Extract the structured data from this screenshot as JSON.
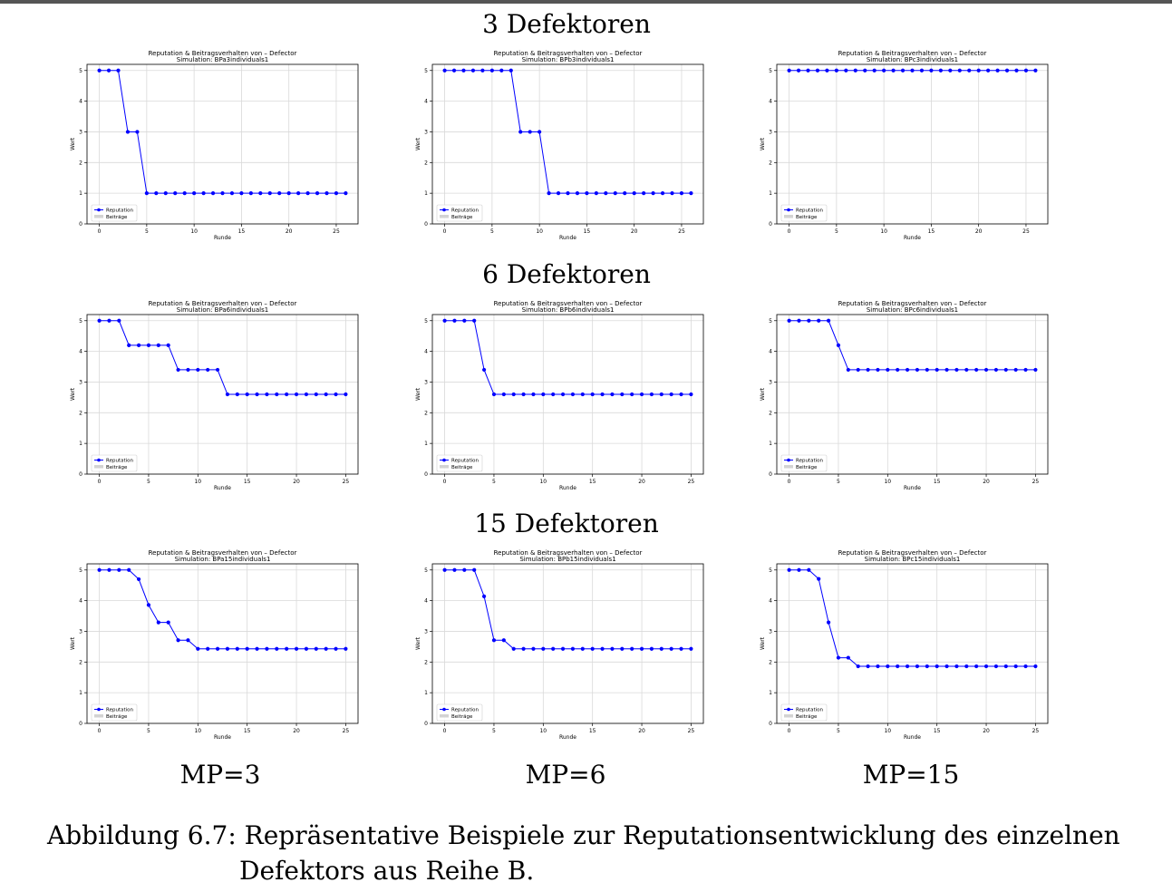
{
  "rows": [
    {
      "title": "3 Defektoren"
    },
    {
      "title": "6 Defektoren"
    },
    {
      "title": "15 Defektoren"
    }
  ],
  "columns": [
    {
      "label": "MP=3"
    },
    {
      "label": "MP=6"
    },
    {
      "label": "MP=15"
    }
  ],
  "caption": {
    "line1": "Abbildung 6.7: Repräsentative Beispiele zur Reputationsentwicklung des einzelnen",
    "line2": "Defektors aus Reihe B."
  },
  "chart_data": [
    {
      "type": "line",
      "title": "Reputation & Beitragsverhalten von – Defector",
      "subtitle": "Simulation: BPa3individuals1",
      "xlabel": "Runde",
      "ylabel": "Wert",
      "xlim": [
        -1.3,
        27.3
      ],
      "ylim": [
        0,
        5.2
      ],
      "xticks": [
        0,
        5,
        10,
        15,
        20,
        25
      ],
      "yticks": [
        0,
        1,
        2,
        3,
        4,
        5
      ],
      "grid": true,
      "legend": "bottom-left",
      "series": [
        {
          "name": "Reputation",
          "color": "#0000ff",
          "marker": "circle",
          "x": [
            0,
            1,
            2,
            3,
            4,
            5,
            6,
            7,
            8,
            9,
            10,
            11,
            12,
            13,
            14,
            15,
            16,
            17,
            18,
            19,
            20,
            21,
            22,
            23,
            24,
            25,
            26
          ],
          "y": [
            5,
            5,
            5,
            3,
            3,
            1,
            1,
            1,
            1,
            1,
            1,
            1,
            1,
            1,
            1,
            1,
            1,
            1,
            1,
            1,
            1,
            1,
            1,
            1,
            1,
            1,
            1
          ]
        },
        {
          "name": "Beiträge",
          "color": "#d3d3d3",
          "type": "bar",
          "x": [],
          "y": []
        }
      ]
    },
    {
      "type": "line",
      "title": "Reputation & Beitragsverhalten von – Defector",
      "subtitle": "Simulation: BPb3individuals1",
      "xlabel": "Runde",
      "ylabel": "Wert",
      "xlim": [
        -1.3,
        27.3
      ],
      "ylim": [
        0,
        5.2
      ],
      "xticks": [
        0,
        5,
        10,
        15,
        20,
        25
      ],
      "yticks": [
        0,
        1,
        2,
        3,
        4,
        5
      ],
      "grid": true,
      "legend": "bottom-left",
      "series": [
        {
          "name": "Reputation",
          "color": "#0000ff",
          "marker": "circle",
          "x": [
            0,
            1,
            2,
            3,
            4,
            5,
            6,
            7,
            8,
            9,
            10,
            11,
            12,
            13,
            14,
            15,
            16,
            17,
            18,
            19,
            20,
            21,
            22,
            23,
            24,
            25,
            26
          ],
          "y": [
            5,
            5,
            5,
            5,
            5,
            5,
            5,
            5,
            3,
            3,
            3,
            1,
            1,
            1,
            1,
            1,
            1,
            1,
            1,
            1,
            1,
            1,
            1,
            1,
            1,
            1,
            1
          ]
        },
        {
          "name": "Beiträge",
          "color": "#d3d3d3",
          "type": "bar",
          "x": [],
          "y": []
        }
      ]
    },
    {
      "type": "line",
      "title": "Reputation & Beitragsverhalten von – Defector",
      "subtitle": "Simulation: BPc3individuals1",
      "xlabel": "Runde",
      "ylabel": "Wert",
      "xlim": [
        -1.3,
        27.3
      ],
      "ylim": [
        0,
        5.2
      ],
      "xticks": [
        0,
        5,
        10,
        15,
        20,
        25
      ],
      "yticks": [
        0,
        1,
        2,
        3,
        4,
        5
      ],
      "grid": true,
      "legend": "bottom-left",
      "series": [
        {
          "name": "Reputation",
          "color": "#0000ff",
          "marker": "circle",
          "x": [
            0,
            1,
            2,
            3,
            4,
            5,
            6,
            7,
            8,
            9,
            10,
            11,
            12,
            13,
            14,
            15,
            16,
            17,
            18,
            19,
            20,
            21,
            22,
            23,
            24,
            25,
            26
          ],
          "y": [
            5,
            5,
            5,
            5,
            5,
            5,
            5,
            5,
            5,
            5,
            5,
            5,
            5,
            5,
            5,
            5,
            5,
            5,
            5,
            5,
            5,
            5,
            5,
            5,
            5,
            5,
            5
          ]
        },
        {
          "name": "Beiträge",
          "color": "#d3d3d3",
          "type": "bar",
          "x": [],
          "y": []
        }
      ]
    },
    {
      "type": "line",
      "title": "Reputation & Beitragsverhalten von – Defector",
      "subtitle": "Simulation: BPa6individuals1",
      "xlabel": "Runde",
      "ylabel": "Wert",
      "xlim": [
        -1.25,
        26.25
      ],
      "ylim": [
        0,
        5.2
      ],
      "xticks": [
        0,
        5,
        10,
        15,
        20,
        25
      ],
      "yticks": [
        0,
        1,
        2,
        3,
        4,
        5
      ],
      "grid": true,
      "legend": "bottom-left",
      "series": [
        {
          "name": "Reputation",
          "color": "#0000ff",
          "marker": "circle",
          "x": [
            0,
            1,
            2,
            3,
            4,
            5,
            6,
            7,
            8,
            9,
            10,
            11,
            12,
            13,
            14,
            15,
            16,
            17,
            18,
            19,
            20,
            21,
            22,
            23,
            24,
            25
          ],
          "y": [
            5,
            5,
            5,
            4.2,
            4.2,
            4.2,
            4.2,
            4.2,
            3.4,
            3.4,
            3.4,
            3.4,
            3.4,
            2.6,
            2.6,
            2.6,
            2.6,
            2.6,
            2.6,
            2.6,
            2.6,
            2.6,
            2.6,
            2.6,
            2.6,
            2.6
          ]
        },
        {
          "name": "Beiträge",
          "color": "#d3d3d3",
          "type": "bar",
          "x": [],
          "y": []
        }
      ]
    },
    {
      "type": "line",
      "title": "Reputation & Beitragsverhalten von – Defector",
      "subtitle": "Simulation: BPb6individuals1",
      "xlabel": "Runde",
      "ylabel": "Wert",
      "xlim": [
        -1.25,
        26.25
      ],
      "ylim": [
        0,
        5.2
      ],
      "xticks": [
        0,
        5,
        10,
        15,
        20,
        25
      ],
      "yticks": [
        0,
        1,
        2,
        3,
        4,
        5
      ],
      "grid": true,
      "legend": "bottom-left",
      "series": [
        {
          "name": "Reputation",
          "color": "#0000ff",
          "marker": "circle",
          "x": [
            0,
            1,
            2,
            3,
            4,
            5,
            6,
            7,
            8,
            9,
            10,
            11,
            12,
            13,
            14,
            15,
            16,
            17,
            18,
            19,
            20,
            21,
            22,
            23,
            24,
            25
          ],
          "y": [
            5,
            5,
            5,
            5,
            3.4,
            2.6,
            2.6,
            2.6,
            2.6,
            2.6,
            2.6,
            2.6,
            2.6,
            2.6,
            2.6,
            2.6,
            2.6,
            2.6,
            2.6,
            2.6,
            2.6,
            2.6,
            2.6,
            2.6,
            2.6,
            2.6
          ]
        },
        {
          "name": "Beiträge",
          "color": "#d3d3d3",
          "type": "bar",
          "x": [],
          "y": []
        }
      ]
    },
    {
      "type": "line",
      "title": "Reputation & Beitragsverhalten von – Defector",
      "subtitle": "Simulation: BPc6individuals1",
      "xlabel": "Runde",
      "ylabel": "Wert",
      "xlim": [
        -1.25,
        26.25
      ],
      "ylim": [
        0,
        5.2
      ],
      "xticks": [
        0,
        5,
        10,
        15,
        20,
        25
      ],
      "yticks": [
        0,
        1,
        2,
        3,
        4,
        5
      ],
      "grid": true,
      "legend": "bottom-left",
      "series": [
        {
          "name": "Reputation",
          "color": "#0000ff",
          "marker": "circle",
          "x": [
            0,
            1,
            2,
            3,
            4,
            5,
            6,
            7,
            8,
            9,
            10,
            11,
            12,
            13,
            14,
            15,
            16,
            17,
            18,
            19,
            20,
            21,
            22,
            23,
            24,
            25
          ],
          "y": [
            5,
            5,
            5,
            5,
            5,
            4.2,
            3.4,
            3.4,
            3.4,
            3.4,
            3.4,
            3.4,
            3.4,
            3.4,
            3.4,
            3.4,
            3.4,
            3.4,
            3.4,
            3.4,
            3.4,
            3.4,
            3.4,
            3.4,
            3.4,
            3.4
          ]
        },
        {
          "name": "Beiträge",
          "color": "#d3d3d3",
          "type": "bar",
          "x": [],
          "y": []
        }
      ]
    },
    {
      "type": "line",
      "title": "Reputation & Beitragsverhalten von – Defector",
      "subtitle": "Simulation: BPa15individuals1",
      "xlabel": "Runde",
      "ylabel": "Wert",
      "xlim": [
        -1.25,
        26.25
      ],
      "ylim": [
        0,
        5.2
      ],
      "xticks": [
        0,
        5,
        10,
        15,
        20,
        25
      ],
      "yticks": [
        0,
        1,
        2,
        3,
        4,
        5
      ],
      "grid": true,
      "legend": "bottom-left",
      "series": [
        {
          "name": "Reputation",
          "color": "#0000ff",
          "marker": "circle",
          "x": [
            0,
            1,
            2,
            3,
            4,
            5,
            6,
            7,
            8,
            9,
            10,
            11,
            12,
            13,
            14,
            15,
            16,
            17,
            18,
            19,
            20,
            21,
            22,
            23,
            24,
            25
          ],
          "y": [
            5,
            5,
            5,
            5,
            4.7,
            3.86,
            3.29,
            3.29,
            2.71,
            2.71,
            2.43,
            2.43,
            2.43,
            2.43,
            2.43,
            2.43,
            2.43,
            2.43,
            2.43,
            2.43,
            2.43,
            2.43,
            2.43,
            2.43,
            2.43,
            2.43
          ]
        },
        {
          "name": "Beiträge",
          "color": "#d3d3d3",
          "type": "bar",
          "x": [],
          "y": []
        }
      ]
    },
    {
      "type": "line",
      "title": "Reputation & Beitragsverhalten von – Defector",
      "subtitle": "Simulation: BPb15individuals1",
      "xlabel": "Runde",
      "ylabel": "Wert",
      "xlim": [
        -1.25,
        26.25
      ],
      "ylim": [
        0,
        5.2
      ],
      "xticks": [
        0,
        5,
        10,
        15,
        20,
        25
      ],
      "yticks": [
        0,
        1,
        2,
        3,
        4,
        5
      ],
      "grid": true,
      "legend": "bottom-left",
      "series": [
        {
          "name": "Reputation",
          "color": "#0000ff",
          "marker": "circle",
          "x": [
            0,
            1,
            2,
            3,
            4,
            5,
            6,
            7,
            8,
            9,
            10,
            11,
            12,
            13,
            14,
            15,
            16,
            17,
            18,
            19,
            20,
            21,
            22,
            23,
            24,
            25
          ],
          "y": [
            5,
            5,
            5,
            5,
            4.14,
            2.71,
            2.71,
            2.43,
            2.43,
            2.43,
            2.43,
            2.43,
            2.43,
            2.43,
            2.43,
            2.43,
            2.43,
            2.43,
            2.43,
            2.43,
            2.43,
            2.43,
            2.43,
            2.43,
            2.43,
            2.43
          ]
        },
        {
          "name": "Beiträge",
          "color": "#d3d3d3",
          "type": "bar",
          "x": [],
          "y": []
        }
      ]
    },
    {
      "type": "line",
      "title": "Reputation & Beitragsverhalten von – Defector",
      "subtitle": "Simulation: BPc15individuals1",
      "xlabel": "Runde",
      "ylabel": "Wert",
      "xlim": [
        -1.25,
        26.25
      ],
      "ylim": [
        0,
        5.2
      ],
      "xticks": [
        0,
        5,
        10,
        15,
        20,
        25
      ],
      "yticks": [
        0,
        1,
        2,
        3,
        4,
        5
      ],
      "grid": true,
      "legend": "bottom-left",
      "series": [
        {
          "name": "Reputation",
          "color": "#0000ff",
          "marker": "circle",
          "x": [
            0,
            1,
            2,
            3,
            4,
            5,
            6,
            7,
            8,
            9,
            10,
            11,
            12,
            13,
            14,
            15,
            16,
            17,
            18,
            19,
            20,
            21,
            22,
            23,
            24,
            25
          ],
          "y": [
            5,
            5,
            5,
            4.71,
            3.29,
            2.14,
            2.14,
            1.86,
            1.86,
            1.86,
            1.86,
            1.86,
            1.86,
            1.86,
            1.86,
            1.86,
            1.86,
            1.86,
            1.86,
            1.86,
            1.86,
            1.86,
            1.86,
            1.86,
            1.86,
            1.86
          ]
        },
        {
          "name": "Beiträge",
          "color": "#d3d3d3",
          "type": "bar",
          "x": [],
          "y": []
        }
      ]
    }
  ]
}
